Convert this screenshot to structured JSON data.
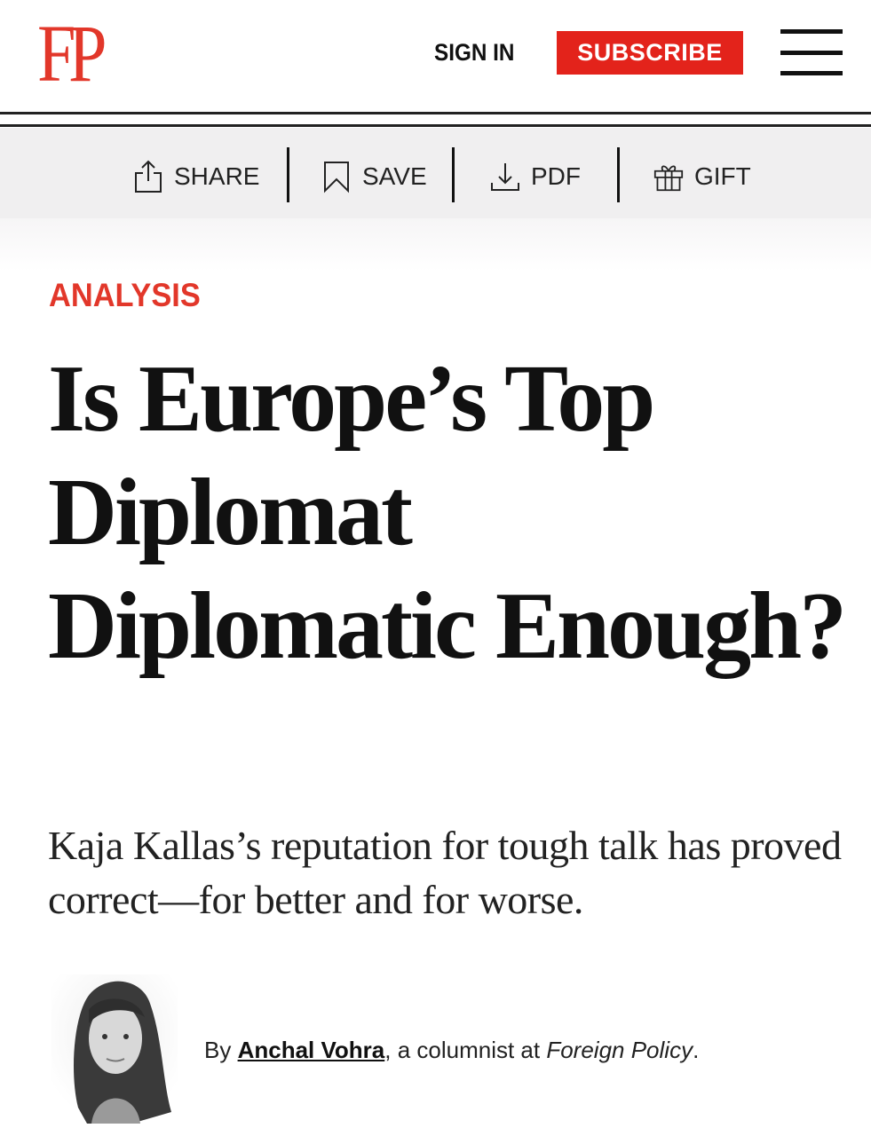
{
  "header": {
    "logo": "FP",
    "sign_in_label": "SIGN IN",
    "subscribe_label": "SUBSCRIBE",
    "menu_icon": "hamburger-icon",
    "accent_color": "#e3231b"
  },
  "toolbar": {
    "items": [
      {
        "label": "SHARE",
        "icon": "share-icon"
      },
      {
        "label": "SAVE",
        "icon": "bookmark-icon"
      },
      {
        "label": "PDF",
        "icon": "download-icon"
      },
      {
        "label": "GIFT",
        "icon": "gift-icon"
      }
    ]
  },
  "article": {
    "kicker": "ANALYSIS",
    "headline": "Is Europe’s Top Diplomat Diplomatic Enough?",
    "dek": "Kaja Kallas’s reputation for tough talk has proved correct—for better and for worse.",
    "byline": {
      "prefix": "By ",
      "author": "Anchal Vohra",
      "middle": ", a columnist at ",
      "publication": "Foreign Policy",
      "suffix": "."
    }
  }
}
